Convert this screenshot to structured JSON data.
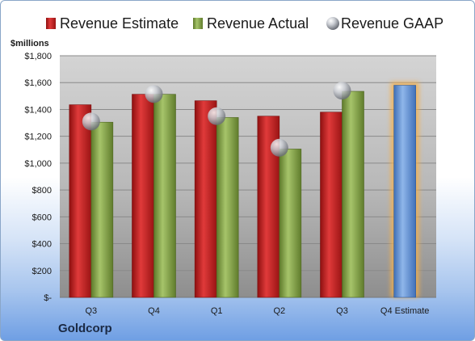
{
  "company": "Goldcorp",
  "chart_data": {
    "type": "bar",
    "unit_label": "$millions",
    "categories": [
      "Q3",
      "Q4",
      "Q1",
      "Q2",
      "Q3",
      "Q4 Estimate"
    ],
    "series": [
      {
        "name": "Revenue Estimate",
        "color": "#cc2222",
        "values": [
          1435,
          1513,
          1465,
          1350,
          1380,
          null
        ]
      },
      {
        "name": "Revenue Actual",
        "color": "#8aa84a",
        "values": [
          1305,
          1513,
          1340,
          1105,
          1535,
          null
        ]
      },
      {
        "name": "Revenue GAAP",
        "color": "#b8bcc4",
        "marker": "sphere",
        "values": [
          1310,
          1515,
          1350,
          1115,
          1540,
          null
        ]
      },
      {
        "name": "",
        "color": "#6f9bd8",
        "highlight": "#f6b04a",
        "values": [
          null,
          null,
          null,
          null,
          null,
          1580
        ]
      }
    ],
    "ylim": [
      0,
      1800
    ],
    "yticks": [
      0,
      200,
      400,
      600,
      800,
      1000,
      1200,
      1400,
      1600,
      1800
    ],
    "ytick_labels": [
      "$-",
      "$200",
      "$400",
      "$600",
      "$800",
      "$1,000",
      "$1,200",
      "$1,400",
      "$1,600",
      "$1,800"
    ],
    "grid": true,
    "legend": "top"
  }
}
